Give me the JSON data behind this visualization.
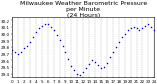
{
  "title": "Milwaukee Weather Barometric Pressure\nper Minute\n(24 Hours)",
  "xlabel": "",
  "ylabel": "",
  "dot_color": "#0000cc",
  "background_color": "#ffffff",
  "grid_color": "#aaaaaa",
  "xlim": [
    0,
    24
  ],
  "ylim": [
    29.35,
    30.25
  ],
  "ytick_values": [
    29.4,
    29.5,
    29.6,
    29.7,
    29.8,
    29.9,
    30.0,
    30.1,
    30.2
  ],
  "xtick_values": [
    0,
    1,
    2,
    3,
    4,
    5,
    6,
    7,
    8,
    9,
    10,
    11,
    12,
    13,
    14,
    15,
    16,
    17,
    18,
    19,
    20,
    21,
    22,
    23,
    24
  ],
  "marker_size": 1.2,
  "title_fontsize": 4.5,
  "tick_fontsize": 3.0,
  "x_data": [
    0,
    0.5,
    1,
    1.5,
    2,
    2.5,
    3,
    3.5,
    4,
    4.5,
    5,
    5.5,
    6,
    6.5,
    7,
    7.5,
    8,
    8.5,
    9,
    9.5,
    10,
    10.5,
    11,
    11.5,
    12,
    12.5,
    13,
    13.5,
    14,
    14.5,
    15,
    15.5,
    16,
    16.5,
    17,
    17.5,
    18,
    18.5,
    19,
    19.5,
    20,
    20.5,
    21,
    21.5,
    22,
    22.5,
    23,
    23.5,
    24
  ],
  "y_data": [
    29.75,
    29.72,
    29.7,
    29.73,
    29.78,
    29.82,
    29.88,
    29.95,
    30.02,
    30.08,
    30.12,
    30.15,
    30.14,
    30.1,
    30.05,
    29.98,
    29.9,
    29.82,
    29.72,
    29.62,
    29.52,
    29.45,
    29.4,
    29.38,
    29.42,
    29.48,
    29.55,
    29.6,
    29.58,
    29.53,
    29.48,
    29.5,
    29.56,
    29.65,
    29.72,
    29.8,
    29.88,
    29.95,
    30.0,
    30.05,
    30.08,
    30.1,
    30.08,
    30.05,
    30.08,
    30.12,
    30.15,
    30.1,
    30.05
  ]
}
